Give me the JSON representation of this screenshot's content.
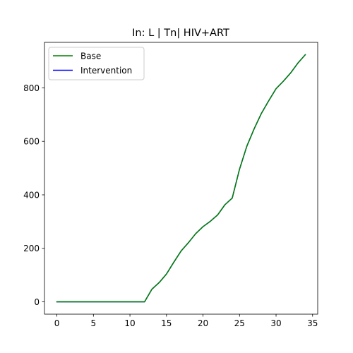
{
  "chart_data": {
    "type": "line",
    "title": "In: L | Tn| HIV+ART",
    "xlabel": "",
    "ylabel": "",
    "xlim": [
      -1.7,
      35.7
    ],
    "ylim": [
      -46.2,
      970.2
    ],
    "xticks": [
      0,
      5,
      10,
      15,
      20,
      25,
      30,
      35
    ],
    "yticks": [
      0,
      200,
      400,
      600,
      800
    ],
    "grid": false,
    "legend_position": "upper-left",
    "x": [
      0,
      1,
      2,
      3,
      4,
      5,
      6,
      7,
      8,
      9,
      10,
      11,
      12,
      13,
      14,
      15,
      16,
      17,
      18,
      19,
      20,
      21,
      22,
      23,
      24,
      25,
      26,
      27,
      28,
      29,
      30,
      31,
      32,
      33,
      34
    ],
    "series": [
      {
        "name": "Base",
        "color": "#008000",
        "values": [
          0,
          0,
          0,
          0,
          0,
          0,
          0,
          0,
          0,
          0,
          0,
          0,
          0,
          47,
          72,
          104,
          148,
          190,
          221,
          255,
          281,
          301,
          325,
          363,
          388,
          496,
          582,
          647,
          705,
          752,
          797,
          825,
          856,
          893,
          924
        ]
      },
      {
        "name": "Intervention",
        "color": "#0000ff",
        "values": [
          0,
          0,
          0,
          0,
          0,
          0,
          0,
          0,
          0,
          0,
          0,
          0,
          0,
          47,
          72,
          104,
          148,
          190,
          221,
          255,
          281,
          301,
          325,
          363,
          388,
          496,
          582,
          647,
          705,
          752,
          797,
          825,
          856,
          893,
          924
        ]
      }
    ]
  }
}
